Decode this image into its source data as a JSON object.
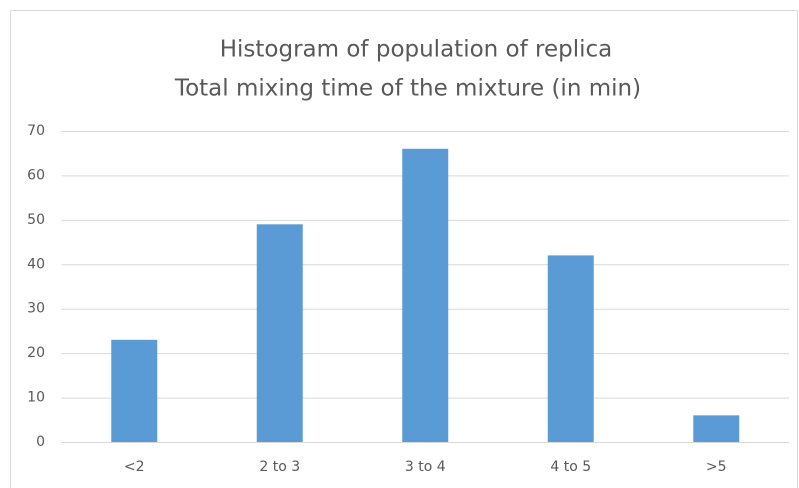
{
  "chart_data": {
    "type": "bar",
    "title": "Histogram of population of replica",
    "subtitle": "Total mixing time of the mixture (in min)",
    "categories": [
      "<2",
      "2 to 3",
      "3 to 4",
      "4 to 5",
      ">5"
    ],
    "values": [
      23,
      49,
      66,
      42,
      6
    ],
    "color": "#5b9bd5",
    "ylim": [
      0,
      70
    ],
    "yticks": [
      0,
      10,
      20,
      30,
      40,
      50,
      60,
      70
    ],
    "grid": true
  }
}
